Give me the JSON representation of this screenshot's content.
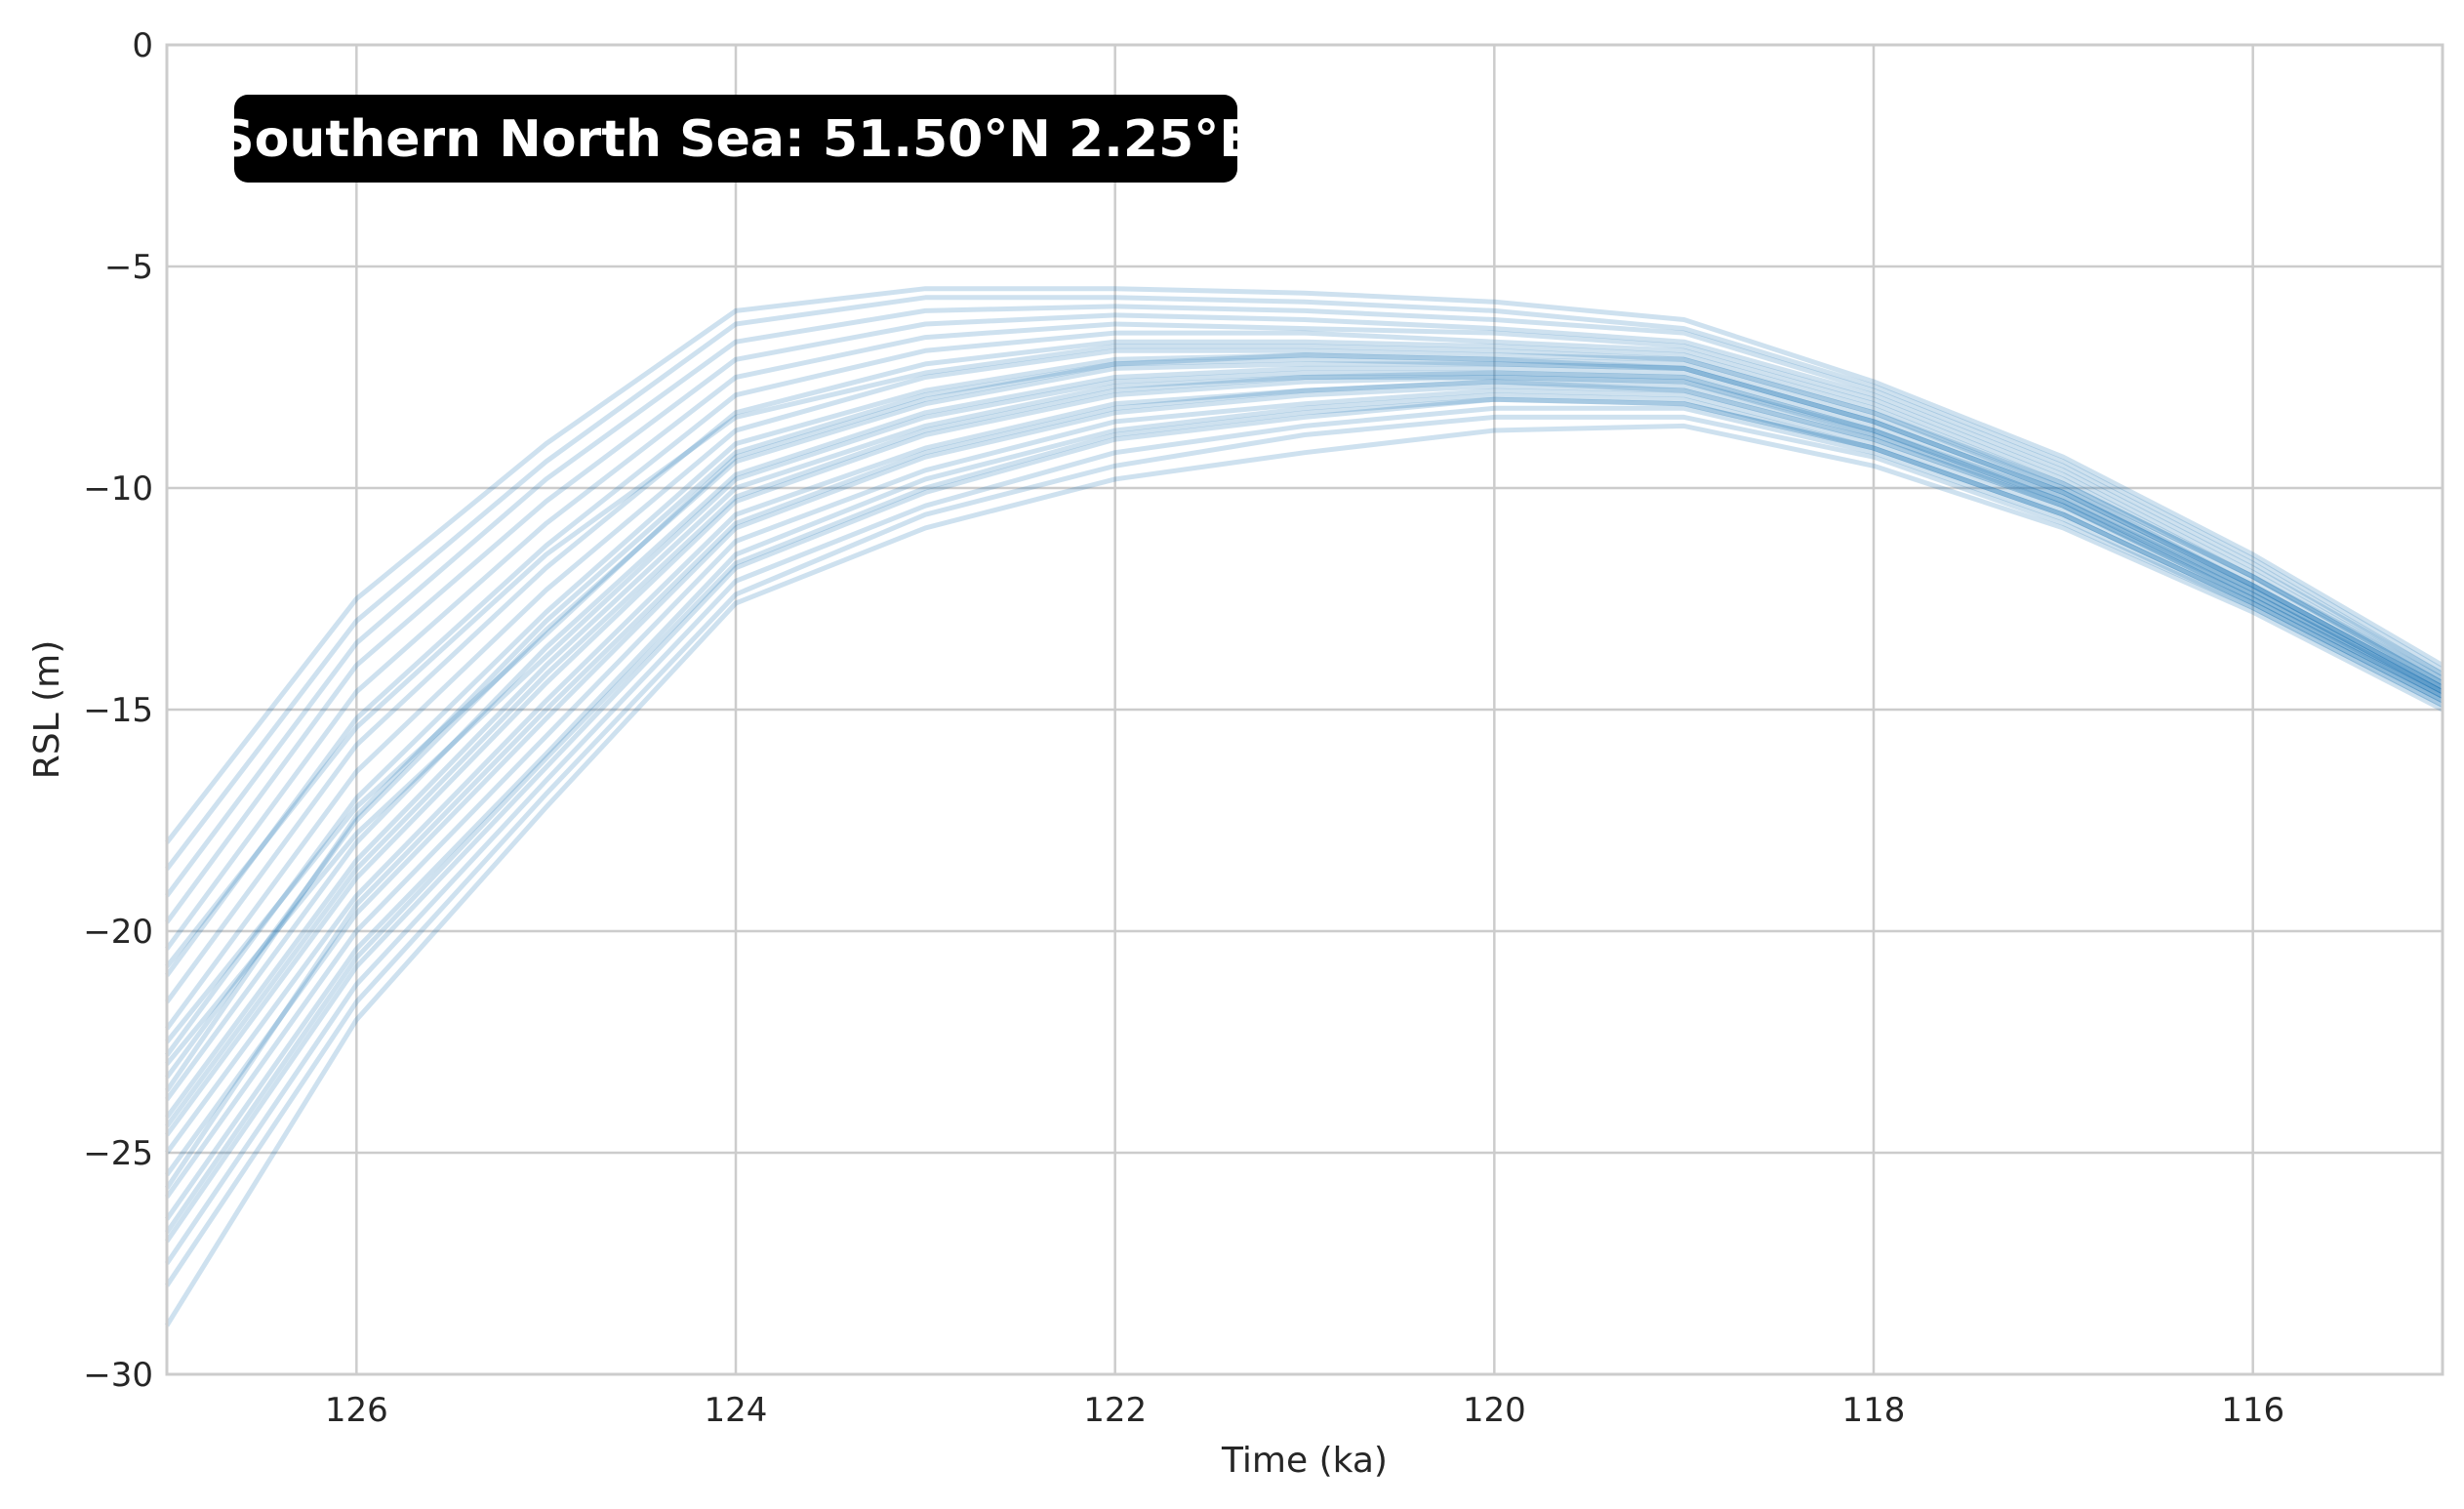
{
  "chart_data": {
    "type": "line",
    "xlabel": "Time (ka)",
    "ylabel": "RSL (m)",
    "annotation": "Southern North Sea: 51.50°N 2.25°E",
    "x_reversed": true,
    "xlim": [
      127,
      115
    ],
    "ylim": [
      -30,
      0
    ],
    "x_ticks": [
      126,
      124,
      122,
      120,
      118,
      116
    ],
    "x_tick_labels": [
      "126",
      "124",
      "122",
      "120",
      "118",
      "116"
    ],
    "y_ticks": [
      0,
      -5,
      -10,
      -15,
      -20,
      -25,
      -30
    ],
    "y_tick_labels": [
      "0",
      "−5",
      "−10",
      "−15",
      "−20",
      "−25",
      "−30"
    ],
    "grid": true,
    "line_color": "#1f77b4",
    "x": [
      127,
      126,
      125,
      124,
      123,
      122,
      121,
      120,
      119,
      118,
      117,
      116,
      115
    ],
    "series": [
      {
        "values": [
          -18.0,
          -12.5,
          -9.0,
          -6.0,
          -5.5,
          -5.5,
          -5.6,
          -5.8,
          -6.2,
          -7.6,
          -9.3,
          -11.5,
          -14.0
        ]
      },
      {
        "values": [
          -18.6,
          -13.0,
          -9.4,
          -6.3,
          -5.7,
          -5.7,
          -5.8,
          -6.0,
          -6.4,
          -7.7,
          -9.4,
          -11.6,
          -14.1
        ]
      },
      {
        "values": [
          -19.2,
          -13.5,
          -9.8,
          -6.7,
          -6.0,
          -5.9,
          -6.0,
          -6.2,
          -6.5,
          -7.8,
          -9.5,
          -11.7,
          -14.2
        ]
      },
      {
        "values": [
          -19.8,
          -14.0,
          -10.3,
          -7.1,
          -6.3,
          -6.1,
          -6.2,
          -6.4,
          -6.7,
          -7.9,
          -9.6,
          -11.8,
          -14.2
        ]
      },
      {
        "values": [
          -20.4,
          -14.6,
          -10.8,
          -7.5,
          -6.6,
          -6.3,
          -6.4,
          -6.5,
          -6.8,
          -8.0,
          -9.7,
          -11.9,
          -14.3
        ]
      },
      {
        "values": [
          -21.0,
          -15.2,
          -11.3,
          -7.9,
          -6.9,
          -6.5,
          -6.5,
          -6.7,
          -6.9,
          -8.1,
          -9.8,
          -12.0,
          -14.3
        ]
      },
      {
        "values": [
          -21.6,
          -15.8,
          -11.8,
          -8.3,
          -7.2,
          -6.7,
          -6.7,
          -6.8,
          -7.0,
          -8.2,
          -9.9,
          -12.0,
          -14.4
        ]
      },
      {
        "values": [
          -22.2,
          -16.4,
          -12.3,
          -8.7,
          -7.5,
          -6.9,
          -6.9,
          -7.0,
          -7.1,
          -8.3,
          -10.0,
          -12.1,
          -14.4
        ]
      },
      {
        "values": [
          -22.8,
          -17.0,
          -12.8,
          -9.0,
          -7.8,
          -7.1,
          -7.0,
          -7.1,
          -7.2,
          -8.4,
          -10.0,
          -12.2,
          -14.5
        ]
      },
      {
        "values": [
          -23.3,
          -17.5,
          -13.2,
          -9.4,
          -8.1,
          -7.3,
          -7.2,
          -7.2,
          -7.3,
          -8.5,
          -10.1,
          -12.2,
          -14.5
        ]
      },
      {
        "values": [
          -23.8,
          -18.0,
          -13.6,
          -9.7,
          -8.3,
          -7.5,
          -7.3,
          -7.3,
          -7.4,
          -8.6,
          -10.2,
          -12.3,
          -14.6
        ]
      },
      {
        "values": [
          -24.2,
          -18.4,
          -14.0,
          -10.0,
          -8.6,
          -7.7,
          -7.5,
          -7.4,
          -7.5,
          -8.7,
          -10.3,
          -12.3,
          -14.6
        ]
      },
      {
        "values": [
          -24.6,
          -18.8,
          -14.4,
          -10.3,
          -8.8,
          -7.9,
          -7.6,
          -7.5,
          -7.6,
          -8.8,
          -10.3,
          -12.4,
          -14.6
        ]
      },
      {
        "values": [
          -25.0,
          -19.2,
          -14.8,
          -10.6,
          -9.1,
          -8.1,
          -7.8,
          -7.6,
          -7.7,
          -8.8,
          -10.4,
          -12.4,
          -14.7
        ]
      },
      {
        "values": [
          -25.5,
          -19.6,
          -15.2,
          -10.9,
          -9.3,
          -8.3,
          -7.9,
          -7.7,
          -7.8,
          -8.9,
          -10.4,
          -12.5,
          -14.7
        ]
      },
      {
        "values": [
          -26.0,
          -20.0,
          -15.6,
          -11.2,
          -9.6,
          -8.5,
          -8.1,
          -7.8,
          -7.9,
          -9.0,
          -10.5,
          -12.5,
          -14.7
        ]
      },
      {
        "values": [
          -26.5,
          -20.4,
          -16.0,
          -11.5,
          -9.8,
          -8.7,
          -8.2,
          -7.9,
          -8.0,
          -9.1,
          -10.6,
          -12.6,
          -14.8
        ]
      },
      {
        "values": [
          -27.0,
          -20.8,
          -16.3,
          -11.8,
          -10.1,
          -8.9,
          -8.4,
          -8.0,
          -8.1,
          -9.1,
          -10.6,
          -12.6,
          -14.8
        ]
      },
      {
        "values": [
          -27.5,
          -21.2,
          -16.6,
          -12.1,
          -10.4,
          -9.2,
          -8.6,
          -8.2,
          -8.2,
          -9.2,
          -10.7,
          -12.7,
          -14.9
        ]
      },
      {
        "values": [
          -28.0,
          -21.6,
          -16.9,
          -12.4,
          -10.6,
          -9.5,
          -8.8,
          -8.4,
          -8.4,
          -9.3,
          -10.8,
          -12.7,
          -14.9
        ]
      },
      {
        "values": [
          -28.9,
          -22.0,
          -17.2,
          -12.6,
          -10.9,
          -9.8,
          -9.2,
          -8.7,
          -8.6,
          -9.5,
          -10.9,
          -12.8,
          -15.0
        ]
      },
      {
        "values": [
          -23.0,
          -17.8,
          -13.8,
          -9.8,
          -8.4,
          -7.6,
          -7.4,
          -7.4,
          -7.5,
          -8.7,
          -10.2,
          -12.3,
          -14.6
        ]
      },
      {
        "values": [
          -24.4,
          -18.6,
          -14.2,
          -10.2,
          -8.7,
          -7.8,
          -7.5,
          -7.5,
          -7.6,
          -8.7,
          -10.3,
          -12.4,
          -14.6
        ]
      },
      {
        "values": [
          -22.5,
          -17.2,
          -13.3,
          -9.3,
          -8.0,
          -7.2,
          -7.1,
          -7.2,
          -7.3,
          -8.5,
          -10.1,
          -12.2,
          -14.5
        ]
      },
      {
        "values": [
          -25.8,
          -19.4,
          -15.0,
          -10.8,
          -9.2,
          -8.2,
          -7.8,
          -7.6,
          -7.8,
          -8.9,
          -10.4,
          -12.5,
          -14.7
        ]
      },
      {
        "values": [
          -20.8,
          -15.4,
          -11.5,
          -8.4,
          -7.4,
          -6.8,
          -6.8,
          -6.9,
          -7.1,
          -8.3,
          -9.9,
          -12.0,
          -14.4
        ]
      },
      {
        "values": [
          -26.8,
          -20.6,
          -16.1,
          -11.7,
          -10.0,
          -8.8,
          -8.3,
          -8.0,
          -8.1,
          -9.1,
          -10.6,
          -12.6,
          -14.8
        ]
      },
      {
        "values": [
          -23.6,
          -17.4,
          -13.0,
          -9.2,
          -7.9,
          -7.2,
          -7.0,
          -7.1,
          -7.3,
          -8.5,
          -10.1,
          -12.2,
          -14.5
        ]
      }
    ]
  }
}
